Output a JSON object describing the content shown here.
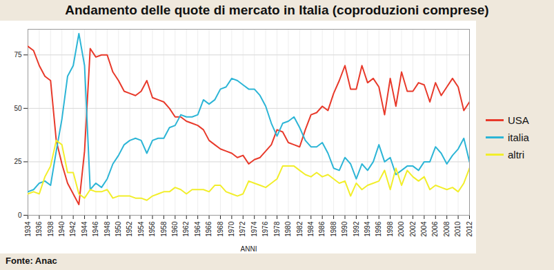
{
  "chart_data": {
    "type": "line",
    "title": "Andamento delle quote di mercato in Italia (coproduzioni comprese)",
    "x_label": "ANNI",
    "source": "Fonte: Anac",
    "x": [
      1934,
      1935,
      1936,
      1937,
      1938,
      1939,
      1940,
      1941,
      1942,
      1943,
      1944,
      1945,
      1946,
      1947,
      1948,
      1949,
      1950,
      1951,
      1952,
      1953,
      1954,
      1955,
      1956,
      1957,
      1958,
      1959,
      1960,
      1961,
      1962,
      1963,
      1964,
      1965,
      1966,
      1967,
      1968,
      1969,
      1970,
      1971,
      1972,
      1973,
      1974,
      1975,
      1976,
      1977,
      1978,
      1979,
      1980,
      1981,
      1982,
      1983,
      1984,
      1985,
      1986,
      1987,
      1988,
      1989,
      1990,
      1991,
      1992,
      1993,
      1994,
      1995,
      1996,
      1997,
      1998,
      1999,
      2000,
      2001,
      2002,
      2003,
      2004,
      2005,
      2006,
      2007,
      2008,
      2009,
      2010,
      2011,
      2012
    ],
    "series": [
      {
        "name": "USA",
        "color": "#e8392a",
        "values": [
          79,
          77,
          70,
          65,
          63,
          35,
          24,
          15,
          10,
          5,
          30,
          78,
          74,
          75,
          75,
          67,
          63,
          58,
          57,
          56,
          58,
          63,
          55,
          54,
          53,
          50,
          46,
          46,
          44,
          43,
          42,
          40,
          35,
          33,
          31,
          30,
          29,
          27,
          28,
          24,
          26,
          27,
          30,
          33,
          40,
          39,
          34,
          33,
          32,
          40,
          47,
          48,
          51,
          49,
          57,
          63,
          70,
          59,
          59,
          70,
          62,
          64,
          60,
          47,
          64,
          51,
          67,
          58,
          58,
          62,
          61,
          53,
          62,
          56,
          60,
          64,
          60,
          49,
          53
        ]
      },
      {
        "name": "italia",
        "color": "#2cb5d6",
        "values": [
          11,
          12,
          15,
          16,
          14,
          30,
          45,
          65,
          70,
          85,
          70,
          12,
          15,
          13,
          17,
          24,
          28,
          33,
          35,
          36,
          35,
          29,
          35,
          36,
          36,
          41,
          42,
          47,
          46,
          46,
          47,
          54,
          52,
          54,
          59,
          60,
          64,
          63,
          61,
          59,
          59,
          56,
          51,
          43,
          37,
          43,
          44,
          46,
          41,
          35,
          32,
          32,
          34,
          29,
          22,
          21,
          27,
          24,
          17,
          24,
          21,
          25,
          33,
          25,
          27,
          19,
          21,
          23,
          23,
          21,
          25,
          25,
          32,
          29,
          24,
          28,
          31,
          36,
          25
        ]
      },
      {
        "name": "altri",
        "color": "#f2ee2a",
        "values": [
          10,
          11,
          10,
          18,
          23,
          35,
          33,
          20,
          20,
          10,
          8,
          12,
          11,
          11,
          12,
          8,
          9,
          9,
          9,
          8,
          8,
          7,
          9,
          10,
          11,
          11,
          13,
          12,
          10,
          12,
          12,
          12,
          11,
          14,
          14,
          11,
          10,
          9,
          10,
          16,
          15,
          14,
          13,
          15,
          17,
          23,
          23,
          23,
          21,
          19,
          18,
          20,
          18,
          19,
          17,
          15,
          16,
          9,
          15,
          12,
          14,
          15,
          16,
          21,
          12,
          22,
          14,
          21,
          18,
          16,
          18,
          12,
          14,
          13,
          12,
          13,
          11,
          15,
          22
        ]
      }
    ],
    "xlim": [
      1934,
      2012
    ],
    "xticks": [
      1934,
      1936,
      1938,
      1940,
      1942,
      1944,
      1946,
      1948,
      1950,
      1952,
      1954,
      1956,
      1958,
      1960,
      1962,
      1964,
      1966,
      1968,
      1970,
      1972,
      1974,
      1976,
      1978,
      1980,
      1982,
      1984,
      1986,
      1988,
      1990,
      1992,
      1994,
      1996,
      1998,
      2000,
      2002,
      2004,
      2006,
      2008,
      2010,
      2012
    ],
    "ylim": [
      0,
      87
    ],
    "yticks": [
      0,
      25,
      50,
      75
    ],
    "grid": true,
    "legend": "right"
  }
}
